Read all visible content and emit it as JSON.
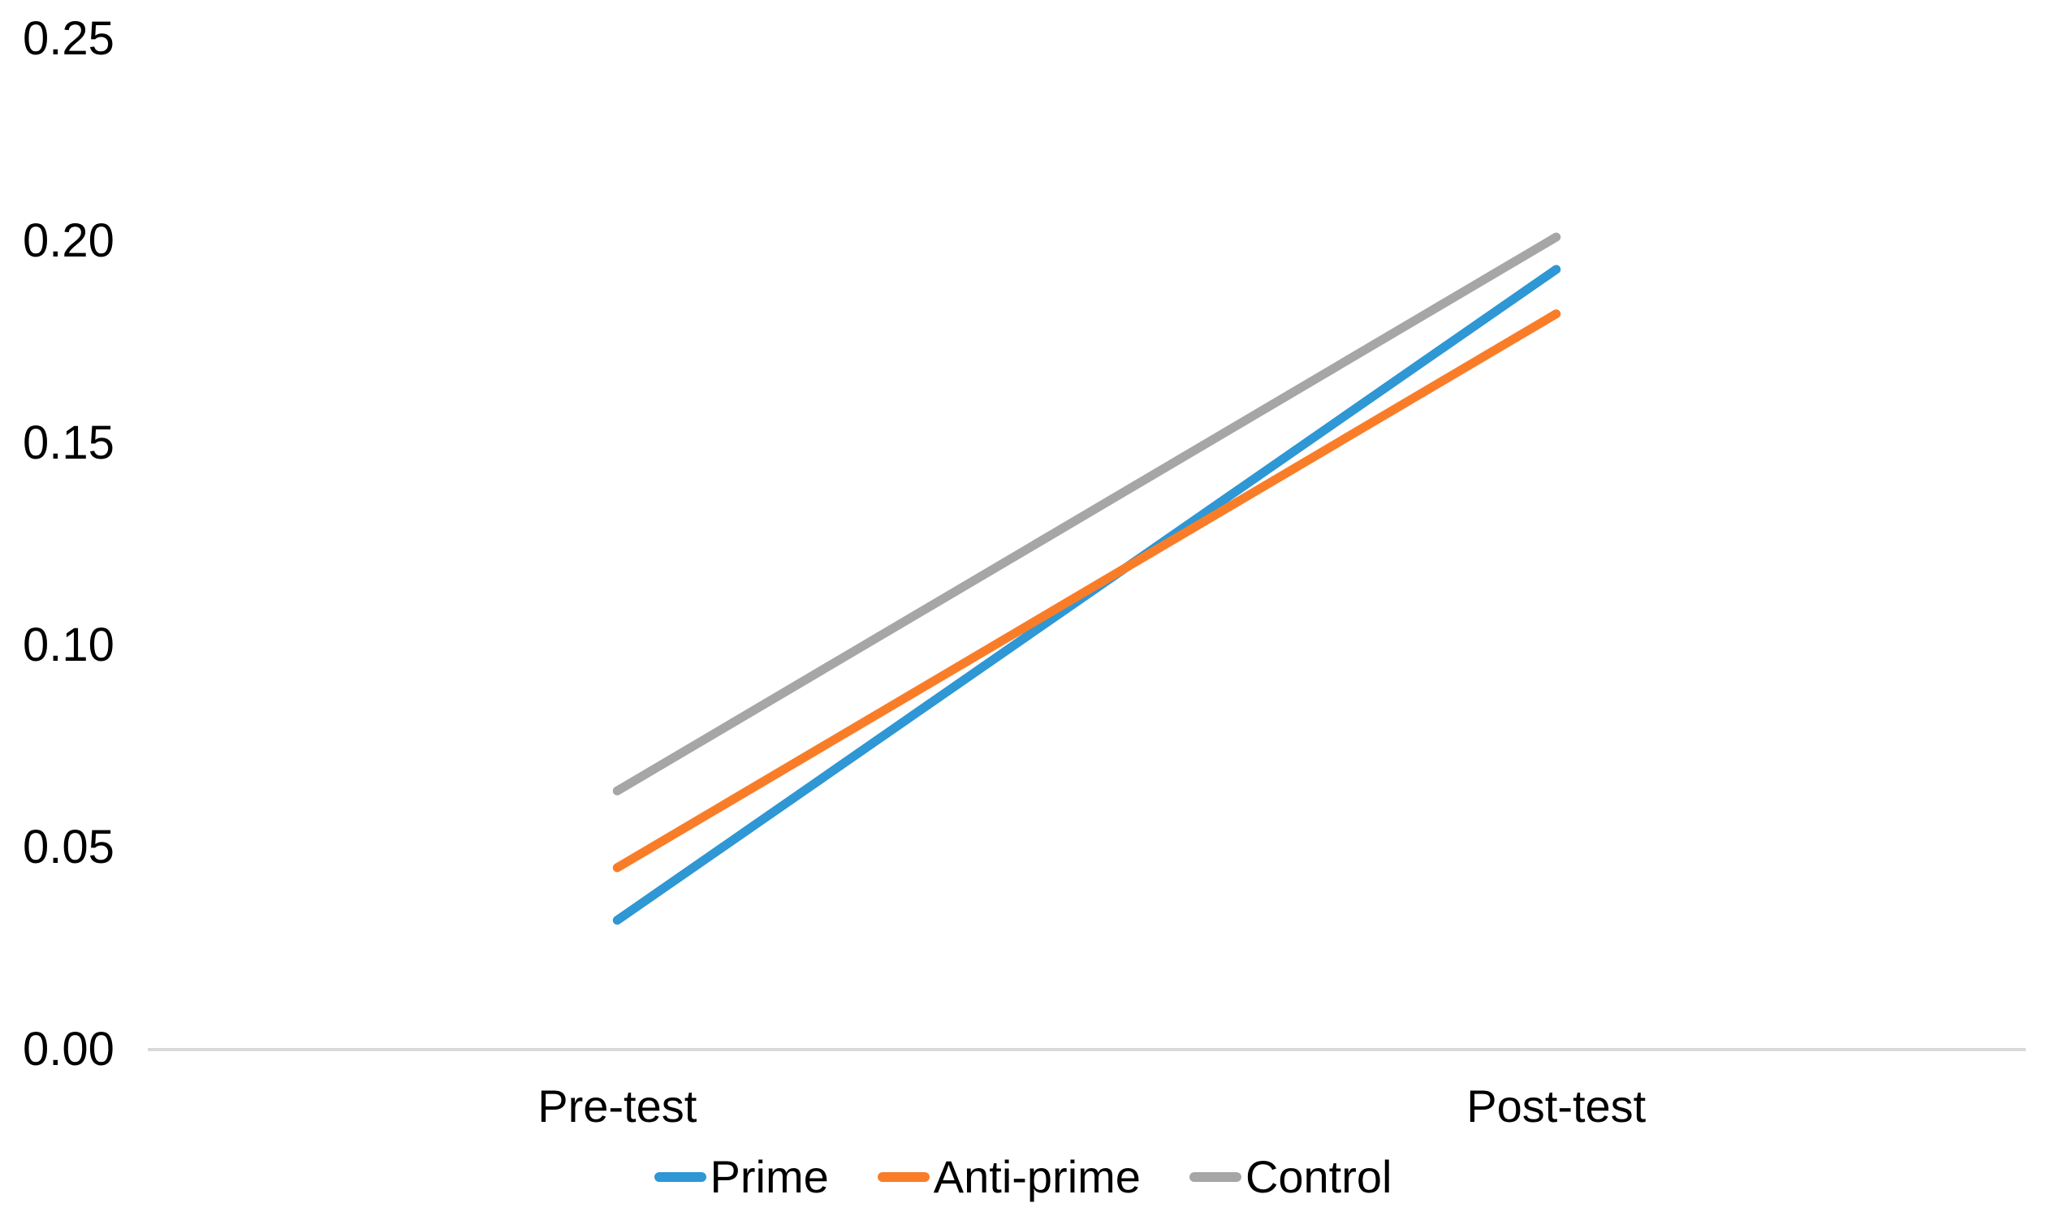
{
  "figure": {
    "background": "#FFFFFF",
    "text_color": "#000000"
  },
  "chart_data": {
    "type": "line",
    "title": "",
    "xlabel": "",
    "ylabel": "",
    "categories": [
      "Pre-test",
      "Post-test"
    ],
    "series": [
      {
        "name": "Prime",
        "color": "#2E97D4",
        "values": [
          0.032,
          0.193
        ]
      },
      {
        "name": "Anti-prime",
        "color": "#F97D28",
        "values": [
          0.045,
          0.182
        ]
      },
      {
        "name": "Control",
        "color": "#A6A6A6",
        "values": [
          0.064,
          0.201
        ]
      }
    ],
    "ylim": [
      0,
      0.25
    ],
    "yticks": [
      {
        "value": 0.0,
        "label": "0.00"
      },
      {
        "value": 0.05,
        "label": "0.05"
      },
      {
        "value": 0.1,
        "label": "0.10"
      },
      {
        "value": 0.15,
        "label": "0.15"
      },
      {
        "value": 0.2,
        "label": "0.20"
      },
      {
        "value": 0.25,
        "label": "0.25"
      }
    ],
    "grid": false,
    "gridlines": "none",
    "legend_position": "bottom",
    "axis_line_color": "#D9D9D9",
    "line_width": 11
  }
}
